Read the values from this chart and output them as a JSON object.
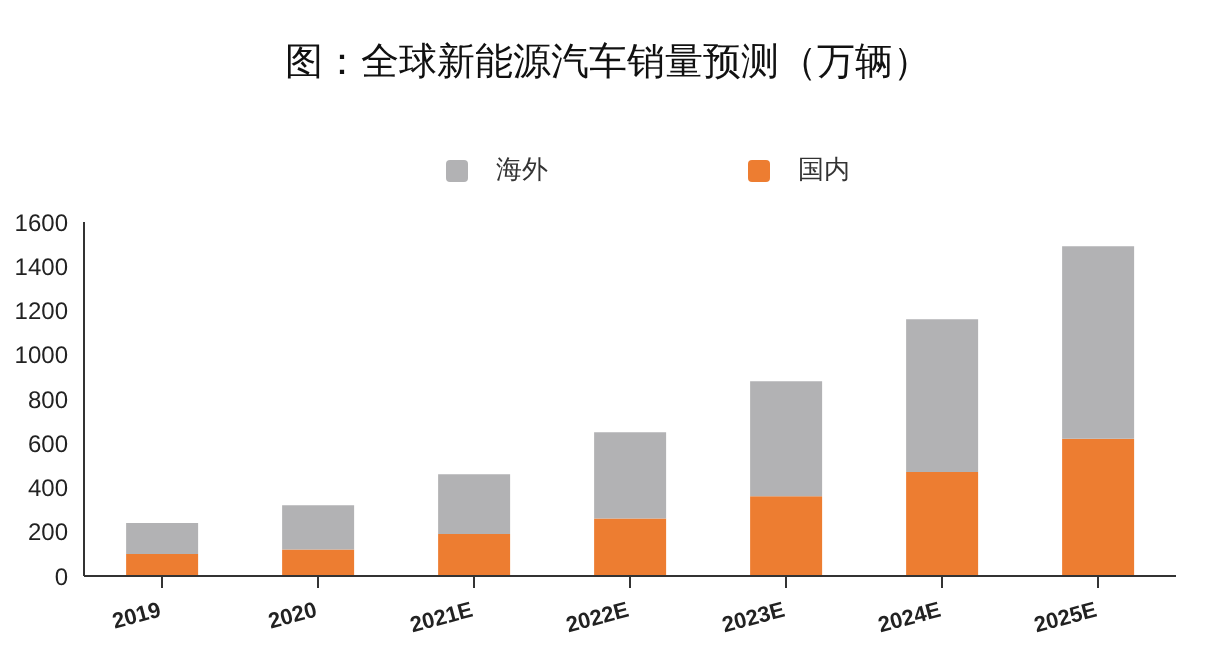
{
  "chart_data": {
    "type": "bar",
    "title": "图：全球新能源汽车销量预测（万辆）",
    "categories": [
      "2019",
      "2020",
      "2021E",
      "2022E",
      "2023E",
      "2024E",
      "2025E"
    ],
    "stacked": true,
    "series": [
      {
        "name": "国内",
        "color": "#ed7d31",
        "values": [
          100,
          120,
          190,
          260,
          360,
          470,
          620
        ]
      },
      {
        "name": "海外",
        "color": "#b2b2b4",
        "values": [
          140,
          200,
          270,
          390,
          520,
          690,
          870
        ]
      }
    ],
    "ylim": [
      0,
      1600
    ],
    "yticks": [
      0,
      200,
      400,
      600,
      800,
      1000,
      1200,
      1400,
      1600
    ],
    "grid": false,
    "legend": "top"
  }
}
